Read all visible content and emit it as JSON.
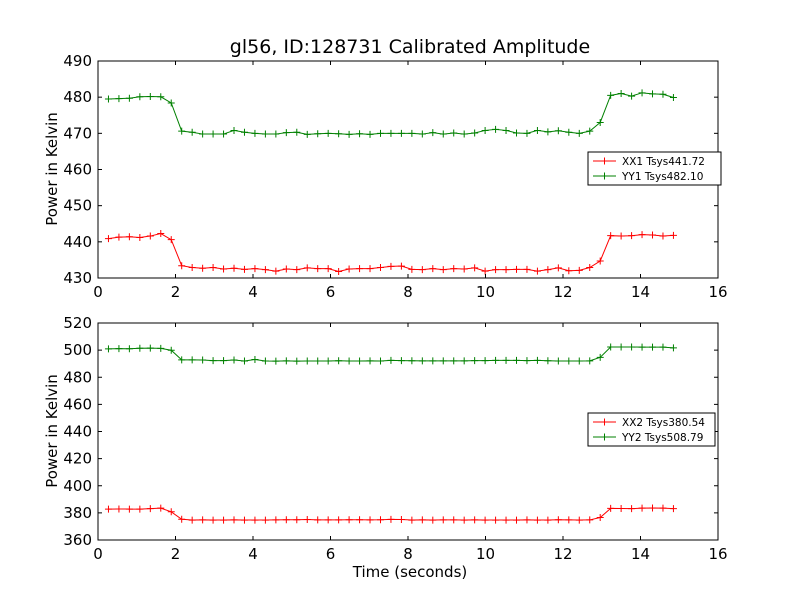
{
  "chart_data": [
    {
      "type": "line",
      "title": "gl56, ID:128731 Calibrated Amplitude",
      "xlabel": "",
      "ylabel": "Power in Kelvin",
      "xlim": [
        0,
        16
      ],
      "ylim": [
        430,
        490
      ],
      "xticks": [
        0,
        2,
        4,
        6,
        8,
        10,
        12,
        14,
        16
      ],
      "yticks": [
        430,
        440,
        450,
        460,
        470,
        480,
        490
      ],
      "grid": false,
      "legend": "center-right",
      "x": [
        0.27,
        0.54,
        0.81,
        1.08,
        1.35,
        1.62,
        1.89,
        2.16,
        2.43,
        2.7,
        2.97,
        3.24,
        3.51,
        3.78,
        4.05,
        4.32,
        4.59,
        4.86,
        5.13,
        5.4,
        5.67,
        5.94,
        6.21,
        6.48,
        6.75,
        7.02,
        7.29,
        7.56,
        7.83,
        8.1,
        8.37,
        8.64,
        8.91,
        9.18,
        9.45,
        9.72,
        9.99,
        10.26,
        10.53,
        10.8,
        11.07,
        11.34,
        11.61,
        11.88,
        12.15,
        12.42,
        12.69,
        12.96,
        13.23,
        13.5,
        13.77,
        14.04,
        14.31,
        14.58,
        14.85
      ],
      "series": [
        {
          "name": "XX1 Tsys441.72",
          "color": "#ff0000",
          "values": [
            440.9,
            441.3,
            441.4,
            441.2,
            441.6,
            442.3,
            440.6,
            433.4,
            432.9,
            432.7,
            432.9,
            432.5,
            432.7,
            432.4,
            432.6,
            432.3,
            431.9,
            432.5,
            432.3,
            432.8,
            432.6,
            432.6,
            431.8,
            432.5,
            432.6,
            432.6,
            432.9,
            433.2,
            433.3,
            432.4,
            432.3,
            432.6,
            432.3,
            432.6,
            432.5,
            432.8,
            431.9,
            432.3,
            432.3,
            432.4,
            432.4,
            431.9,
            432.3,
            432.8,
            432.0,
            432.1,
            432.9,
            434.7,
            441.7,
            441.6,
            441.7,
            442.0,
            441.9,
            441.6,
            441.8
          ]
        },
        {
          "name": "YY1 Tsys482.10",
          "color": "#008000",
          "values": [
            479.5,
            479.6,
            479.7,
            480.1,
            480.2,
            480.1,
            478.4,
            470.6,
            470.3,
            469.8,
            469.8,
            469.8,
            470.8,
            470.3,
            470.0,
            469.8,
            469.8,
            470.2,
            470.3,
            469.7,
            469.9,
            470.0,
            469.9,
            469.7,
            469.9,
            469.7,
            470.0,
            470.0,
            470.0,
            470.0,
            469.8,
            470.2,
            469.8,
            470.1,
            469.8,
            470.1,
            470.8,
            471.1,
            470.8,
            470.1,
            470.0,
            470.8,
            470.4,
            470.7,
            470.3,
            470.0,
            470.6,
            473.0,
            480.5,
            481.0,
            480.3,
            481.2,
            480.9,
            480.8,
            479.9
          ]
        }
      ]
    },
    {
      "type": "line",
      "title": "",
      "xlabel": "Time (seconds)",
      "ylabel": "Power in Kelvin",
      "xlim": [
        0,
        16
      ],
      "ylim": [
        360,
        520
      ],
      "xticks": [
        0,
        2,
        4,
        6,
        8,
        10,
        12,
        14,
        16
      ],
      "yticks": [
        360,
        380,
        400,
        420,
        440,
        460,
        480,
        500,
        520
      ],
      "grid": false,
      "legend": "center-right",
      "x": [
        0.27,
        0.54,
        0.81,
        1.08,
        1.35,
        1.62,
        1.89,
        2.16,
        2.43,
        2.7,
        2.97,
        3.24,
        3.51,
        3.78,
        4.05,
        4.32,
        4.59,
        4.86,
        5.13,
        5.4,
        5.67,
        5.94,
        6.21,
        6.48,
        6.75,
        7.02,
        7.29,
        7.56,
        7.83,
        8.1,
        8.37,
        8.64,
        8.91,
        9.18,
        9.45,
        9.72,
        9.99,
        10.26,
        10.53,
        10.8,
        11.07,
        11.34,
        11.61,
        11.88,
        12.15,
        12.42,
        12.69,
        12.96,
        13.23,
        13.5,
        13.77,
        14.04,
        14.31,
        14.58,
        14.85
      ],
      "series": [
        {
          "name": "XX2 Tsys380.54",
          "color": "#ff0000",
          "values": [
            382.8,
            382.9,
            382.8,
            382.8,
            383.1,
            383.5,
            380.8,
            375.3,
            374.7,
            374.8,
            374.7,
            374.7,
            374.8,
            374.7,
            374.7,
            374.7,
            374.8,
            374.9,
            374.9,
            375.1,
            374.8,
            374.8,
            374.8,
            374.9,
            374.9,
            374.8,
            374.9,
            375.2,
            375.1,
            374.7,
            374.8,
            374.7,
            374.8,
            374.8,
            374.7,
            374.8,
            374.7,
            374.7,
            374.7,
            374.7,
            374.8,
            374.7,
            374.7,
            374.9,
            374.8,
            374.7,
            374.8,
            376.6,
            383.3,
            383.2,
            383.1,
            383.5,
            383.6,
            383.5,
            383.1
          ]
        },
        {
          "name": "YY2 Tsys508.79",
          "color": "#008000",
          "values": [
            500.9,
            501.1,
            501.0,
            501.4,
            501.5,
            501.3,
            499.9,
            492.8,
            492.8,
            492.7,
            492.3,
            492.3,
            492.7,
            492.0,
            493.1,
            492.0,
            491.9,
            492.1,
            491.9,
            492.0,
            492.0,
            492.0,
            492.2,
            492.0,
            492.0,
            492.1,
            492.0,
            492.4,
            492.3,
            492.2,
            492.1,
            492.1,
            492.1,
            492.1,
            492.1,
            492.3,
            492.3,
            492.4,
            492.4,
            492.4,
            492.3,
            492.4,
            492.2,
            492.0,
            492.0,
            492.0,
            492.1,
            494.7,
            502.3,
            502.3,
            502.3,
            502.2,
            502.2,
            502.2,
            501.7
          ]
        }
      ]
    }
  ]
}
